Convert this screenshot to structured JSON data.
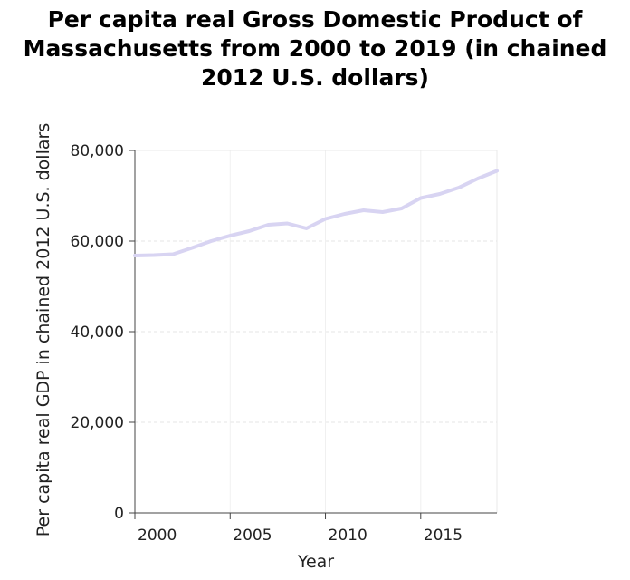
{
  "chart_data": {
    "type": "line",
    "title_lines": [
      "Per capita real Gross Domestic Product of",
      "Massachusetts from 2000 to 2019 (in chained",
      "2012 U.S. dollars)"
    ],
    "xlabel": "Year",
    "ylabel": "Per capita real GDP in chained 2012 U.S. dollars",
    "xlim": [
      2000,
      2019
    ],
    "ylim": [
      0,
      80000
    ],
    "x_ticks": [
      2000,
      2005,
      2010,
      2015
    ],
    "x_tick_labels": [
      "2000",
      "2005",
      "2010",
      "2015"
    ],
    "y_ticks": [
      0,
      20000,
      40000,
      60000,
      80000
    ],
    "y_tick_labels": [
      "0",
      "20,000",
      "40,000",
      "60,000",
      "80,000"
    ],
    "grid": true,
    "line_color": "#d8d4f2",
    "series": [
      {
        "x": [
          2000,
          2001,
          2002,
          2003,
          2004,
          2005,
          2006,
          2007,
          2008,
          2009,
          2010,
          2011,
          2012,
          2013,
          2014,
          2015,
          2016,
          2017,
          2018,
          2019
        ],
        "values": [
          56800,
          56900,
          57100,
          58500,
          60000,
          61200,
          62200,
          63600,
          63900,
          62800,
          64900,
          66000,
          66800,
          66400,
          67200,
          69500,
          70400,
          71800,
          73800,
          75500
        ]
      }
    ]
  }
}
